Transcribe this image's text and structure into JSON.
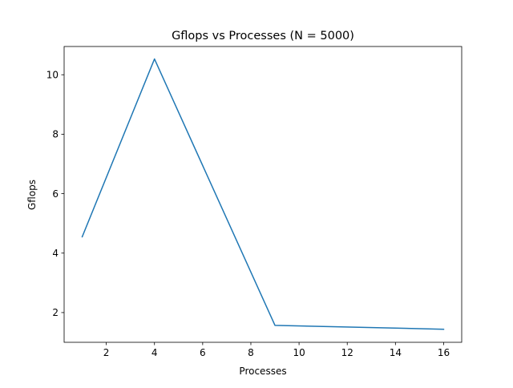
{
  "chart_data": {
    "type": "line",
    "title": "Gflops vs Processes (N = 5000)",
    "xlabel": "Processes",
    "ylabel": "Gflops",
    "xlim": [
      0.25,
      16.75
    ],
    "ylim": [
      1.0,
      10.95
    ],
    "xticks": [
      2,
      4,
      6,
      8,
      10,
      12,
      14,
      16
    ],
    "yticks": [
      2,
      4,
      6,
      8,
      10
    ],
    "grid": false,
    "series": [
      {
        "color": "#1f77b4",
        "x": [
          1,
          4,
          9,
          16
        ],
        "y": [
          4.55,
          10.53,
          1.57,
          1.44
        ]
      }
    ]
  }
}
